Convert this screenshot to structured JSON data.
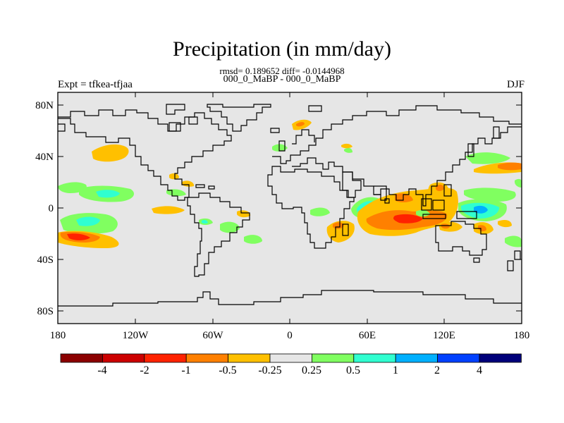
{
  "title": "Precipitation (in mm/day)",
  "subtitle": "rmsd= 0.189652 diff= -0.0144968",
  "subtitle2": "000_0_MaBP - 000_0_MaBP",
  "left_label": "Expt = tfkea-tfjaa",
  "right_label": "DJF",
  "lat_ticks": [
    "80N",
    "40N",
    "0",
    "40S",
    "80S"
  ],
  "lon_ticks": [
    "180",
    "120W",
    "60W",
    "0",
    "60E",
    "120E",
    "180"
  ],
  "colorbar": {
    "colors": [
      "#8b0000",
      "#cc0000",
      "#ff2200",
      "#ff8000",
      "#ffc000",
      "#e6e6e6",
      "#80ff60",
      "#30ffd0",
      "#00b0ff",
      "#0040ff",
      "#00007a"
    ],
    "labels": [
      "-4",
      "-2",
      "-1",
      "-0.5",
      "-0.25",
      "0.25",
      "0.5",
      "1",
      "2",
      "4"
    ]
  },
  "colors": {
    "ocean_fill": "#e6e6e6",
    "coast": "#000000"
  },
  "chart_data": {
    "type": "heatmap",
    "title": "Precipitation (in mm/day)",
    "xlim": [
      -180,
      180
    ],
    "ylim": [
      -90,
      90
    ],
    "levels": [
      -4,
      -2,
      -1,
      -0.5,
      -0.25,
      0.25,
      0.5,
      1,
      2,
      4
    ],
    "anomalies": [
      {
        "lon": -150,
        "lat": 20,
        "value": -0.5
      },
      {
        "lon": -170,
        "lat": 26,
        "value": 0.5
      },
      {
        "lon": -145,
        "lat": 10,
        "value": 0.5
      },
      {
        "lon": -138,
        "lat": 10,
        "value": 1
      },
      {
        "lon": -175,
        "lat": 14,
        "value": 0.5
      },
      {
        "lon": -150,
        "lat": -12,
        "value": 0.5
      },
      {
        "lon": -150,
        "lat": -12,
        "value": 1
      },
      {
        "lon": -155,
        "lat": -25,
        "value": -0.5
      },
      {
        "lon": -165,
        "lat": -25,
        "value": -1
      },
      {
        "lon": -170,
        "lat": -25,
        "value": -2
      },
      {
        "lon": -100,
        "lat": 4,
        "value": -0.5
      },
      {
        "lon": -120,
        "lat": 0,
        "value": 0.5
      },
      {
        "lon": -65,
        "lat": -13,
        "value": 0.5
      },
      {
        "lon": -50,
        "lat": -10,
        "value": -0.5
      },
      {
        "lon": -40,
        "lat": -2,
        "value": 0.5
      },
      {
        "lon": -30,
        "lat": -24,
        "value": 0.5
      },
      {
        "lon": 5,
        "lat": 64,
        "value": -0.5
      },
      {
        "lon": -15,
        "lat": 47,
        "value": 0.5
      },
      {
        "lon": 45,
        "lat": -15,
        "value": -1
      },
      {
        "lon": 60,
        "lat": 0,
        "value": 0.5
      },
      {
        "lon": 60,
        "lat": 0,
        "value": 1
      },
      {
        "lon": 80,
        "lat": 2,
        "value": -0.5
      },
      {
        "lon": 90,
        "lat": -5,
        "value": -1
      },
      {
        "lon": 105,
        "lat": -8,
        "value": -1
      },
      {
        "lon": 118,
        "lat": 12,
        "value": -0.5
      },
      {
        "lon": 150,
        "lat": 40,
        "value": 0.5
      },
      {
        "lon": 160,
        "lat": 30,
        "value": -0.5
      },
      {
        "lon": 165,
        "lat": 13,
        "value": 0.5
      },
      {
        "lon": 150,
        "lat": 0,
        "value": 1
      },
      {
        "lon": 155,
        "lat": -2,
        "value": 1
      },
      {
        "lon": 160,
        "lat": -10,
        "value": -0.5
      },
      {
        "lon": 175,
        "lat": -25,
        "value": 0.5
      }
    ]
  }
}
